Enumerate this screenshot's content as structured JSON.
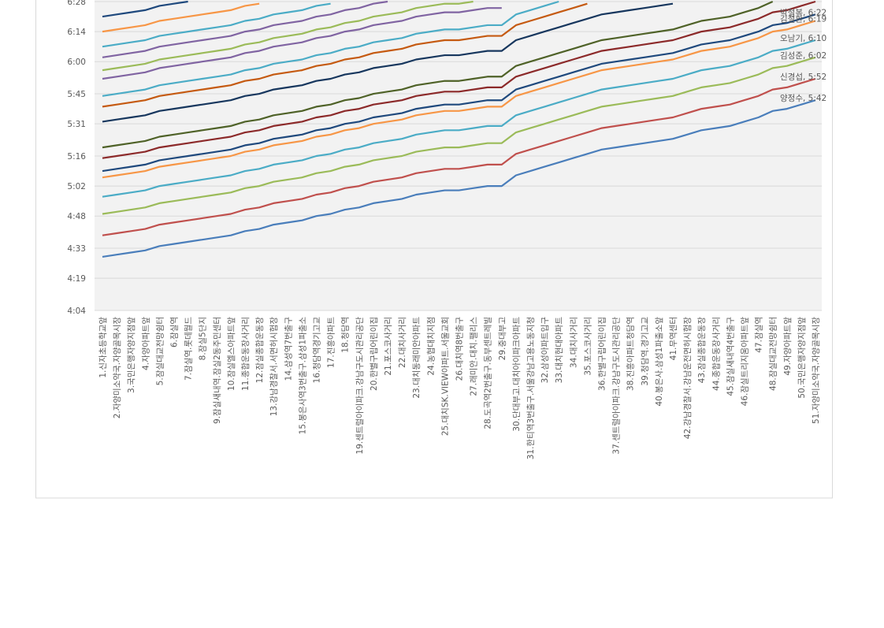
{
  "chart_data": {
    "type": "line",
    "categories": [
      "1.신자초등학교앞",
      "2.자양미소약국.자양골목시장",
      "3.국민은행자양지점앞",
      "4.자양아파트앞",
      "5.잠실대교전망쉼터",
      "6.잠실역",
      "7.잠실역.롯데월드",
      "8.잠실5단지",
      "9.잠실새내역.잠실2동주민센터",
      "10.잠실엘스아파트앞",
      "11.종합운동장사거리",
      "12.잠실종합운동장",
      "13.강남경찰서.서면허시험장",
      "14.삼성역7번출구",
      "15.봉은사역3번출구.삼성1파출소",
      "16.청담역경기고교",
      "17.진흥아파트",
      "18.청담역",
      "19.센트럴아이파크.강남구도시관리공단",
      "20.한별구립어린이집",
      "21.포스코사거리",
      "22.대치사거리",
      "23.대치동래미안아파트",
      "24.농협대치지점",
      "25.대치SK.VIEW아파트.서울교회",
      "26.대치역8번출구",
      "27.래미안.대치.팰리스",
      "28.도곡역2번출구.동부센트레빌",
      "29.중대부고",
      "30.단대부고.대치아이파크아파트",
      "31.한티역3번출구.서울강남고용노동지청",
      "32.삼성아파트입구",
      "33.대치현대아파트",
      "34.대치사거리",
      "35.포스코사거리",
      "36.한별구립어린이집",
      "37.센트럴아이파크.강남구도시관리공단",
      "38.진흥아파트청담역",
      "39.청담역.경기고교",
      "40.봉은사.삼성1파출소앞",
      "41.무역센터",
      "42.강남경찰서.강남운전면허시험장",
      "43.잠실종합운동장",
      "44.종합운동장사거리",
      "45.잠실새내역4번출구",
      "46.잠실트리지움아파트앞",
      "47.잠실역",
      "48.잠실대교전망쉼터",
      "49.자양아파트앞",
      "50.국민은행자양지점앞",
      "51.자양미소약국.자양골목시장"
    ],
    "ylim": [
      244,
      388
    ],
    "yticks": [
      {
        "value": 244,
        "label": "4:04"
      },
      {
        "value": 259,
        "label": "4:19"
      },
      {
        "value": 273,
        "label": "4:33"
      },
      {
        "value": 288,
        "label": "4:48"
      },
      {
        "value": 302,
        "label": "5:02"
      },
      {
        "value": 316,
        "label": "5:16"
      },
      {
        "value": 331,
        "label": "5:31"
      },
      {
        "value": 345,
        "label": "5:45"
      },
      {
        "value": 360,
        "label": "6:00"
      },
      {
        "value": 374,
        "label": "6:14"
      },
      {
        "value": 388,
        "label": "6:28"
      }
    ],
    "grid": true,
    "series": [
      {
        "label": "양정수, 5:42",
        "color": "#4a7ebb",
        "values": [
          269,
          270,
          271,
          272,
          274,
          275,
          276,
          277,
          278,
          279,
          281,
          282,
          284,
          285,
          286,
          288,
          289,
          291,
          292,
          294,
          295,
          296,
          298,
          299,
          300,
          300,
          301,
          302,
          302,
          307,
          309,
          311,
          313,
          315,
          317,
          319,
          320,
          321,
          322,
          323,
          324,
          326,
          328,
          329,
          330,
          332,
          334,
          337,
          338,
          340,
          342
        ]
      },
      {
        "label": "신경섭, 5:52",
        "color": "#c0504d",
        "values": [
          279,
          280,
          281,
          282,
          284,
          285,
          286,
          287,
          288,
          289,
          291,
          292,
          294,
          295,
          296,
          298,
          299,
          301,
          302,
          304,
          305,
          306,
          308,
          309,
          310,
          310,
          311,
          312,
          312,
          317,
          319,
          321,
          323,
          325,
          327,
          329,
          330,
          331,
          332,
          333,
          334,
          336,
          338,
          339,
          340,
          342,
          344,
          347,
          348,
          350,
          352
        ]
      },
      {
        "label": "김성준, 6:02",
        "color": "#9bbb59",
        "values": [
          289,
          290,
          291,
          292,
          294,
          295,
          296,
          297,
          298,
          299,
          301,
          302,
          304,
          305,
          306,
          308,
          309,
          311,
          312,
          314,
          315,
          316,
          318,
          319,
          320,
          320,
          321,
          322,
          322,
          327,
          329,
          331,
          333,
          335,
          337,
          339,
          340,
          341,
          342,
          343,
          344,
          346,
          348,
          349,
          350,
          352,
          354,
          357,
          358,
          360,
          362
        ]
      },
      {
        "label": "오남기, 6:10",
        "color": "#4bacc6",
        "values": [
          297,
          298,
          299,
          300,
          302,
          303,
          304,
          305,
          306,
          307,
          309,
          310,
          312,
          313,
          314,
          316,
          317,
          319,
          320,
          322,
          323,
          324,
          326,
          327,
          328,
          328,
          329,
          330,
          330,
          335,
          337,
          339,
          341,
          343,
          345,
          347,
          348,
          349,
          350,
          351,
          352,
          354,
          356,
          357,
          358,
          360,
          362,
          365,
          366,
          368,
          370
        ]
      },
      {
        "label": "김철환, 6:19",
        "color": "#f79646",
        "values": [
          306,
          307,
          308,
          309,
          311,
          312,
          313,
          314,
          315,
          316,
          318,
          319,
          321,
          322,
          323,
          325,
          326,
          328,
          329,
          331,
          332,
          333,
          335,
          336,
          337,
          337,
          338,
          339,
          339,
          344,
          346,
          348,
          350,
          352,
          354,
          356,
          357,
          358,
          359,
          360,
          361,
          363,
          365,
          366,
          367,
          369,
          371,
          374,
          375,
          377,
          379
        ]
      },
      {
        "label": "박철복, 6:22",
        "color": "#1f497d",
        "values": [
          309,
          310,
          311,
          312,
          314,
          315,
          316,
          317,
          318,
          319,
          321,
          322,
          324,
          325,
          326,
          328,
          329,
          331,
          332,
          334,
          335,
          336,
          338,
          339,
          340,
          340,
          341,
          342,
          342,
          347,
          349,
          351,
          353,
          355,
          357,
          359,
          360,
          361,
          362,
          363,
          364,
          366,
          368,
          369,
          370,
          372,
          374,
          377,
          378,
          380,
          382
        ]
      },
      {
        "color": "#8c2a2a",
        "values": [
          315,
          316,
          317,
          318,
          320,
          321,
          322,
          323,
          324,
          325,
          327,
          328,
          330,
          331,
          332,
          334,
          335,
          337,
          338,
          340,
          341,
          342,
          344,
          345,
          346,
          346,
          347,
          348,
          348,
          353,
          355,
          357,
          359,
          361,
          363,
          365,
          366,
          367,
          368,
          369,
          370,
          372,
          374,
          375,
          376,
          378,
          380,
          383,
          384,
          386,
          388
        ]
      },
      {
        "color": "#4f6228",
        "values": [
          320,
          321,
          322,
          323,
          325,
          326,
          327,
          328,
          329,
          330,
          332,
          333,
          335,
          336,
          337,
          339,
          340,
          342,
          343,
          345,
          346,
          347,
          349,
          350,
          351,
          351,
          352,
          353,
          353,
          358,
          360,
          362,
          364,
          366,
          368,
          370,
          371,
          372,
          373,
          374,
          375,
          377,
          379,
          380,
          381,
          383,
          385,
          388,
          null,
          null,
          null
        ]
      },
      {
        "color": "#17375e",
        "values": [
          332,
          333,
          334,
          335,
          337,
          338,
          339,
          340,
          341,
          342,
          344,
          345,
          347,
          348,
          349,
          351,
          352,
          354,
          355,
          357,
          358,
          359,
          361,
          362,
          363,
          363,
          364,
          365,
          365,
          370,
          372,
          374,
          376,
          378,
          380,
          382,
          383,
          384,
          385,
          386,
          387,
          null,
          null,
          null,
          null,
          null,
          null,
          null,
          null,
          null,
          null
        ]
      },
      {
        "color": "#c55a11",
        "values": [
          339,
          340,
          341,
          342,
          344,
          345,
          346,
          347,
          348,
          349,
          351,
          352,
          354,
          355,
          356,
          358,
          359,
          361,
          362,
          364,
          365,
          366,
          368,
          369,
          370,
          370,
          371,
          372,
          372,
          377,
          379,
          381,
          383,
          385,
          387,
          null,
          null,
          null,
          null,
          null,
          null,
          null,
          null,
          null,
          null,
          null,
          null,
          null,
          null,
          null,
          null
        ]
      },
      {
        "color": "#4bacc6",
        "values": [
          344,
          345,
          346,
          347,
          349,
          350,
          351,
          352,
          353,
          354,
          356,
          357,
          359,
          360,
          361,
          363,
          364,
          366,
          367,
          369,
          370,
          371,
          373,
          374,
          375,
          375,
          376,
          377,
          377,
          382,
          384,
          386,
          388,
          null,
          null,
          null,
          null,
          null,
          null,
          null,
          null,
          null,
          null,
          null,
          null,
          null,
          null,
          null,
          null,
          null,
          null
        ]
      },
      {
        "color": "#8064a2",
        "values": [
          352,
          353,
          354,
          355,
          357,
          358,
          359,
          360,
          361,
          362,
          364,
          365,
          367,
          368,
          369,
          371,
          372,
          374,
          375,
          377,
          378,
          379,
          381,
          382,
          383,
          383,
          384,
          385,
          385,
          null,
          null,
          null,
          null,
          null,
          null,
          null,
          null,
          null,
          null,
          null,
          null,
          null,
          null,
          null,
          null,
          null,
          null,
          null,
          null,
          null,
          null
        ]
      },
      {
        "color": "#9bbb59",
        "values": [
          356,
          357,
          358,
          359,
          361,
          362,
          363,
          364,
          365,
          366,
          368,
          369,
          371,
          372,
          373,
          375,
          376,
          378,
          379,
          381,
          382,
          383,
          385,
          386,
          387,
          387,
          388,
          null,
          null,
          null,
          null,
          null,
          null,
          null,
          null,
          null,
          null,
          null,
          null,
          null,
          null,
          null,
          null,
          null,
          null,
          null,
          null,
          null,
          null,
          null,
          null
        ]
      },
      {
        "color": "#8064a2",
        "values": [
          362,
          363,
          364,
          365,
          367,
          368,
          369,
          370,
          371,
          372,
          374,
          375,
          377,
          378,
          379,
          381,
          382,
          384,
          385,
          387,
          388,
          null,
          null,
          null,
          null,
          null,
          null,
          null,
          null,
          null,
          null,
          null,
          null,
          null,
          null,
          null,
          null,
          null,
          null,
          null,
          null,
          null,
          null,
          null,
          null,
          null,
          null,
          null,
          null,
          null,
          null
        ]
      },
      {
        "color": "#4bacc6",
        "values": [
          367,
          368,
          369,
          370,
          372,
          373,
          374,
          375,
          376,
          377,
          379,
          380,
          382,
          383,
          384,
          386,
          387,
          null,
          null,
          null,
          null,
          null,
          null,
          null,
          null,
          null,
          null,
          null,
          null,
          null,
          null,
          null,
          null,
          null,
          null,
          null,
          null,
          null,
          null,
          null,
          null,
          null,
          null,
          null,
          null,
          null,
          null,
          null,
          null,
          null,
          null
        ]
      },
      {
        "color": "#f79646",
        "values": [
          374,
          375,
          376,
          377,
          379,
          380,
          381,
          382,
          383,
          384,
          386,
          387,
          null,
          null,
          null,
          null,
          null,
          null,
          null,
          null,
          null,
          null,
          null,
          null,
          null,
          null,
          null,
          null,
          null,
          null,
          null,
          null,
          null,
          null,
          null,
          null,
          null,
          null,
          null,
          null,
          null,
          null,
          null,
          null,
          null,
          null,
          null,
          null,
          null,
          null,
          null
        ]
      },
      {
        "color": "#1f497d",
        "values": [
          381,
          382,
          383,
          384,
          386,
          387,
          388,
          null,
          null,
          null,
          null,
          null,
          null,
          null,
          null,
          null,
          null,
          null,
          null,
          null,
          null,
          null,
          null,
          null,
          null,
          null,
          null,
          null,
          null,
          null,
          null,
          null,
          null,
          null,
          null,
          null,
          null,
          null,
          null,
          null,
          null,
          null,
          null,
          null,
          null,
          null,
          null,
          null,
          null,
          null,
          null
        ]
      }
    ]
  }
}
